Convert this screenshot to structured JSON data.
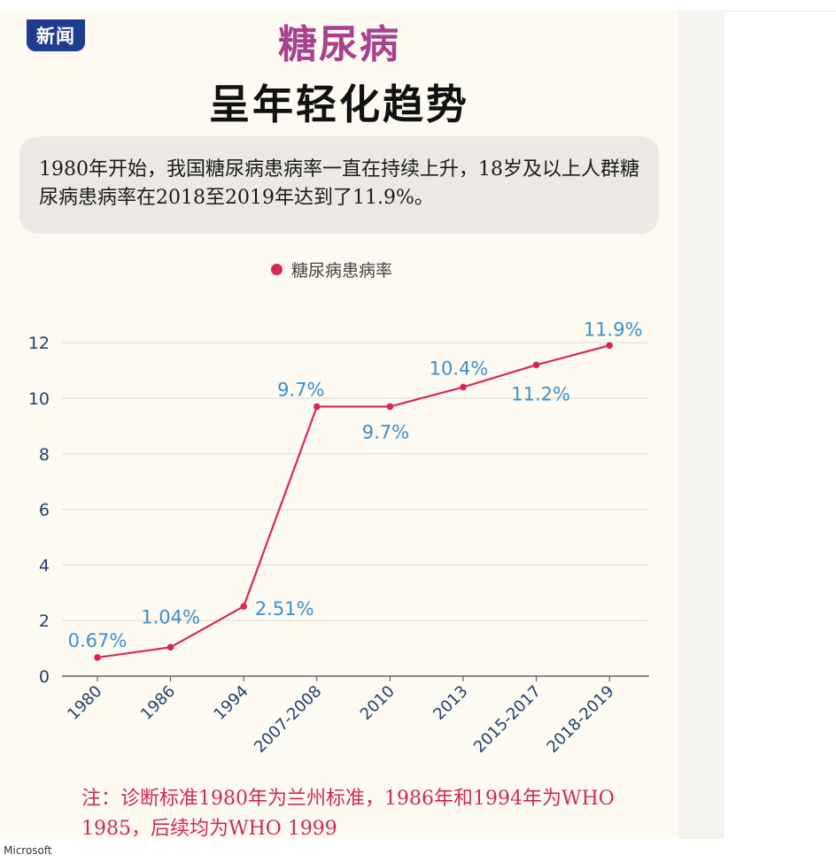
{
  "header": {
    "badge": "新闻",
    "title_line1": "糖尿病",
    "title_line2": "呈年轻化趋势"
  },
  "intro_text": "1980年开始，我国糖尿病患病率一直在持续上升，18岁及以上人群糖尿病患病率在2018至2019年达到了11.9%。",
  "footnote": "注：诊断标准1980年为兰州标准，1986年和1994年为WHO 1985，后续均为WHO 1999",
  "footer_text": "Microsoft",
  "colors": {
    "line": "#d9265a",
    "labels": "#3f8fc6",
    "axis_text": "#233f6b",
    "title_accent": "#a8418f",
    "badge": "#1f3d8f"
  },
  "chart_data": {
    "type": "line",
    "categories": [
      "1980",
      "1986",
      "1994",
      "2007-2008",
      "2010",
      "2013",
      "2015-2017",
      "2018-2019"
    ],
    "series": [
      {
        "name": "糖尿病患病率",
        "values": [
          0.67,
          1.04,
          2.51,
          9.7,
          9.7,
          10.4,
          11.2,
          11.9
        ]
      }
    ],
    "data_labels": [
      "0.67%",
      "1.04%",
      "2.51%",
      "9.7%",
      "9.7%",
      "10.4%",
      "11.2%",
      "11.9%"
    ],
    "y_ticks": [
      "0",
      "2",
      "4",
      "6",
      "8",
      "10",
      "12"
    ],
    "ylim": [
      0,
      12
    ],
    "grid": true,
    "legend": "top-center",
    "title": "",
    "xlabel": "",
    "ylabel": ""
  }
}
